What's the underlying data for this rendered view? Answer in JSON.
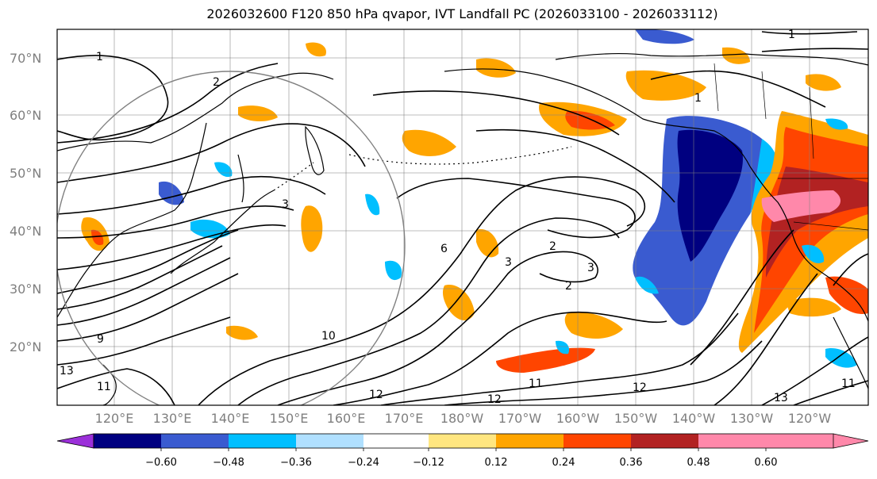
{
  "title": "2026032600 F120 850 hPa qvapor, IVT Landfall PC (2026033100 - 2026033112)",
  "latitude_labels": [
    "70°N",
    "60°N",
    "50°N",
    "40°N",
    "30°N",
    "20°N"
  ],
  "longitude_labels": [
    "120°E",
    "130°E",
    "140°E",
    "150°E",
    "160°E",
    "170°E",
    "180°W",
    "170°W",
    "160°W",
    "150°W",
    "140°W",
    "130°W",
    "120°W"
  ],
  "contour_labels": [
    "1",
    "2",
    "3",
    "6",
    "9",
    "10",
    "11",
    "12",
    "13",
    "1",
    "2",
    "3",
    "2",
    "3",
    "12",
    "11",
    "12",
    "13",
    "11",
    "1"
  ],
  "colorbar": {
    "tick_labels": [
      "−0.60",
      "−0.48",
      "−0.36",
      "−0.24",
      "−0.12",
      "0.12",
      "0.24",
      "0.36",
      "0.48",
      "0.60"
    ],
    "colors": [
      "#9b30d9",
      "#000080",
      "#3a5bd0",
      "#00bfff",
      "#b0e0ff",
      "#ffffff",
      "#ffe680",
      "#ffa500",
      "#ff4500",
      "#b22222",
      "#ff88aa"
    ]
  },
  "colors": {
    "coastline": "#000000",
    "grid": "#808080",
    "contour": "#000000",
    "circle": "#808080"
  }
}
